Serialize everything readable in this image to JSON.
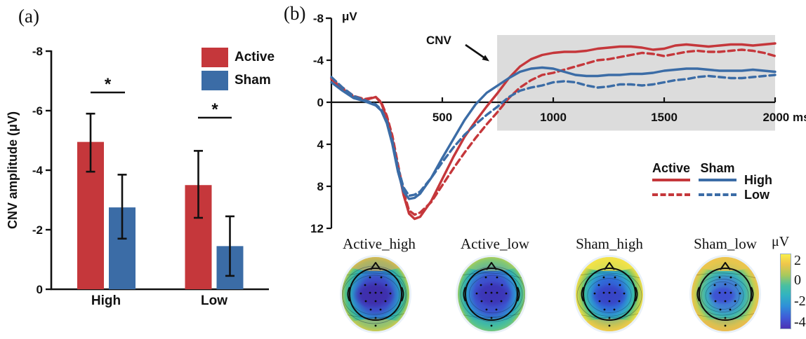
{
  "panel_a": {
    "label": "(a)"
  },
  "panel_b": {
    "label": "(b)"
  },
  "colors": {
    "active": "#c5373b",
    "sham": "#3b6ca6",
    "axis": "#111111",
    "cnv_box": "#dcdcdc"
  },
  "chart_data": [
    {
      "id": "cnv_bar",
      "type": "bar",
      "title": "",
      "ylabel": "CNV amplitude (μV)",
      "categories": [
        "High",
        "Low"
      ],
      "yticks": [
        0,
        -2,
        -4,
        -6,
        -8
      ],
      "ylim": [
        0,
        -8
      ],
      "grid": false,
      "legend_position": "top-right",
      "series": [
        {
          "name": "Active",
          "color": "#c5373b",
          "values": [
            -4.95,
            -3.5
          ],
          "error_upper": [
            -5.9,
            -4.65
          ],
          "error_lower": [
            -3.95,
            -2.4
          ]
        },
        {
          "name": "Sham",
          "color": "#3b6ca6",
          "values": [
            -2.75,
            -1.45
          ],
          "error_upper": [
            -3.85,
            -2.45
          ],
          "error_lower": [
            -1.7,
            -0.45
          ]
        }
      ],
      "significance": [
        {
          "group": "High",
          "label": "*"
        },
        {
          "group": "Low",
          "label": "*"
        }
      ]
    },
    {
      "id": "erp_waveforms",
      "type": "line",
      "ylabel": "μV",
      "xunit": "ms",
      "yticks": [
        -8,
        -4,
        0,
        4,
        8,
        12
      ],
      "xticks": [
        500,
        1000,
        1500,
        2000
      ],
      "xlim": [
        0,
        2000
      ],
      "ylim": [
        -8,
        12
      ],
      "y_inverted": true,
      "grid": false,
      "cnv_window": {
        "label": "CNV",
        "x_start": 747,
        "x_end": 2000,
        "y_top": -6.4,
        "y_bottom": 2.7
      },
      "legend": {
        "col_headers": [
          "Active",
          "Sham"
        ],
        "row_labels": [
          "High",
          "Low"
        ]
      },
      "x": [
        0,
        50,
        100,
        150,
        200,
        225,
        250,
        275,
        300,
        325,
        350,
        375,
        400,
        450,
        500,
        550,
        600,
        650,
        700,
        750,
        800,
        850,
        900,
        950,
        1000,
        1050,
        1100,
        1150,
        1200,
        1250,
        1300,
        1350,
        1400,
        1450,
        1500,
        1550,
        1600,
        1650,
        1700,
        1750,
        1800,
        1850,
        1900,
        1950,
        2000
      ],
      "series": [
        {
          "name": "Active High",
          "color": "#c5373b",
          "dash": false,
          "y": [
            -2.2,
            -1.3,
            -0.5,
            -0.2,
            -0.5,
            0.1,
            1.5,
            3.5,
            6.2,
            8.8,
            10.6,
            11.1,
            10.9,
            9.4,
            7.3,
            5.2,
            3.3,
            1.8,
            0.4,
            -0.9,
            -2.3,
            -3.4,
            -4.1,
            -4.5,
            -4.7,
            -4.8,
            -4.8,
            -4.9,
            -5.1,
            -5.2,
            -5.3,
            -5.3,
            -5.2,
            -5.0,
            -5.1,
            -5.4,
            -5.5,
            -5.4,
            -5.3,
            -5.4,
            -5.5,
            -5.5,
            -5.4,
            -5.5,
            -5.6
          ]
        },
        {
          "name": "Active Low",
          "color": "#c5373b",
          "dash": true,
          "y": [
            -2.3,
            -1.4,
            -0.6,
            -0.3,
            -0.5,
            0.0,
            1.3,
            3.2,
            5.9,
            8.5,
            10.3,
            10.7,
            10.5,
            9.5,
            7.9,
            6.3,
            4.8,
            3.4,
            2.1,
            0.9,
            -0.4,
            -1.4,
            -2.1,
            -2.6,
            -2.8,
            -3.1,
            -3.4,
            -3.7,
            -4.0,
            -4.1,
            -4.3,
            -4.5,
            -4.7,
            -4.6,
            -4.4,
            -4.6,
            -4.8,
            -4.9,
            -4.8,
            -4.8,
            -4.9,
            -5.0,
            -4.9,
            -4.7,
            -4.4
          ]
        },
        {
          "name": "Sham High",
          "color": "#3b6ca6",
          "dash": false,
          "y": [
            -1.9,
            -1.1,
            -0.4,
            -0.1,
            0.3,
            0.8,
            2.0,
            4.0,
            6.6,
            8.5,
            9.2,
            9.1,
            8.7,
            7.2,
            5.3,
            3.5,
            1.7,
            0.2,
            -0.9,
            -1.6,
            -2.3,
            -2.9,
            -3.2,
            -3.3,
            -3.2,
            -2.9,
            -2.6,
            -2.5,
            -2.5,
            -2.6,
            -2.6,
            -2.7,
            -2.7,
            -2.8,
            -3.0,
            -3.1,
            -3.2,
            -3.2,
            -3.1,
            -3.0,
            -3.0,
            -3.0,
            -3.1,
            -3.0,
            -2.9
          ]
        },
        {
          "name": "Sham Low",
          "color": "#3b6ca6",
          "dash": true,
          "y": [
            -2.4,
            -1.4,
            -0.6,
            -0.2,
            0.2,
            0.7,
            1.8,
            3.7,
            6.2,
            8.1,
            8.9,
            8.8,
            8.5,
            7.2,
            5.7,
            4.3,
            3.1,
            2.1,
            1.2,
            0.4,
            -0.5,
            -1.1,
            -1.4,
            -1.6,
            -1.9,
            -2.0,
            -1.9,
            -1.6,
            -1.4,
            -1.5,
            -1.7,
            -1.7,
            -1.6,
            -1.7,
            -1.9,
            -2.1,
            -2.2,
            -2.4,
            -2.5,
            -2.4,
            -2.3,
            -2.3,
            -2.4,
            -2.5,
            -2.6
          ]
        }
      ]
    },
    {
      "id": "topomaps",
      "type": "heatmap",
      "maps": [
        {
          "name": "Active_high",
          "blob": "#3f2daa",
          "blob_cx": 50,
          "blob_cy": 59,
          "blob_rx": 30,
          "blob_ry": 20,
          "field": [
            [
              0,
              "#3c36b4"
            ],
            [
              0.45,
              "#3c4ec8"
            ],
            [
              0.65,
              "#2e86cc"
            ],
            [
              0.78,
              "#2fb0ae"
            ],
            [
              0.9,
              "#55c184"
            ],
            [
              1,
              "#b7cc55"
            ]
          ],
          "top_accent": "#e5ae4e",
          "top_op": 0.65,
          "bot_accent": "#d9c94f",
          "bot_op": 0.55
        },
        {
          "name": "Active_low",
          "blob": "#3c34b5",
          "blob_cx": 54,
          "blob_cy": 58,
          "blob_rx": 28,
          "blob_ry": 19,
          "field": [
            [
              0,
              "#413dc0"
            ],
            [
              0.5,
              "#3b55cf"
            ],
            [
              0.7,
              "#2f8ed2"
            ],
            [
              0.83,
              "#33b3ae"
            ],
            [
              0.94,
              "#5ec287"
            ],
            [
              1,
              "#9cca5e"
            ]
          ],
          "top_accent": "#bfd054",
          "top_op": 0.45,
          "bot_accent": "#4ec19a",
          "bot_op": 0.5
        },
        {
          "name": "Sham_high",
          "blob": "#3744c6",
          "blob_cx": 52,
          "blob_cy": 60,
          "blob_rx": 26,
          "blob_ry": 17,
          "field": [
            [
              0,
              "#3a47cc"
            ],
            [
              0.42,
              "#2f6cd8"
            ],
            [
              0.6,
              "#2fa0cc"
            ],
            [
              0.75,
              "#3cbe9a"
            ],
            [
              0.87,
              "#9fcc55"
            ],
            [
              1,
              "#f0dc49"
            ]
          ],
          "top_accent": "#f6e449",
          "top_op": 0.85,
          "bot_accent": "#f0c04c",
          "bot_op": 0.6
        },
        {
          "name": "Sham_low",
          "blob": "#3e4fd2",
          "blob_cx": 48,
          "blob_cy": 60,
          "blob_rx": 20,
          "blob_ry": 13,
          "field": [
            [
              0,
              "#4156d4"
            ],
            [
              0.4,
              "#3f85d2"
            ],
            [
              0.58,
              "#3ab2b6"
            ],
            [
              0.75,
              "#69c383"
            ],
            [
              0.88,
              "#c2cf52"
            ],
            [
              1,
              "#eec04d"
            ]
          ],
          "top_accent": "#eec44c",
          "top_op": 0.8,
          "bot_accent": "#e9b850",
          "bot_op": 0.6
        }
      ],
      "colorbar": {
        "label": "μV",
        "ticks": [
          2,
          0,
          -2,
          -4
        ],
        "stops": [
          [
            0,
            "#f9ee49"
          ],
          [
            0.13,
            "#f0c64b"
          ],
          [
            0.28,
            "#a9c95c"
          ],
          [
            0.42,
            "#49c0a0"
          ],
          [
            0.55,
            "#32b3c1"
          ],
          [
            0.7,
            "#2f8fd8"
          ],
          [
            0.85,
            "#3f5bd8"
          ],
          [
            1,
            "#4b33b4"
          ]
        ]
      }
    }
  ]
}
